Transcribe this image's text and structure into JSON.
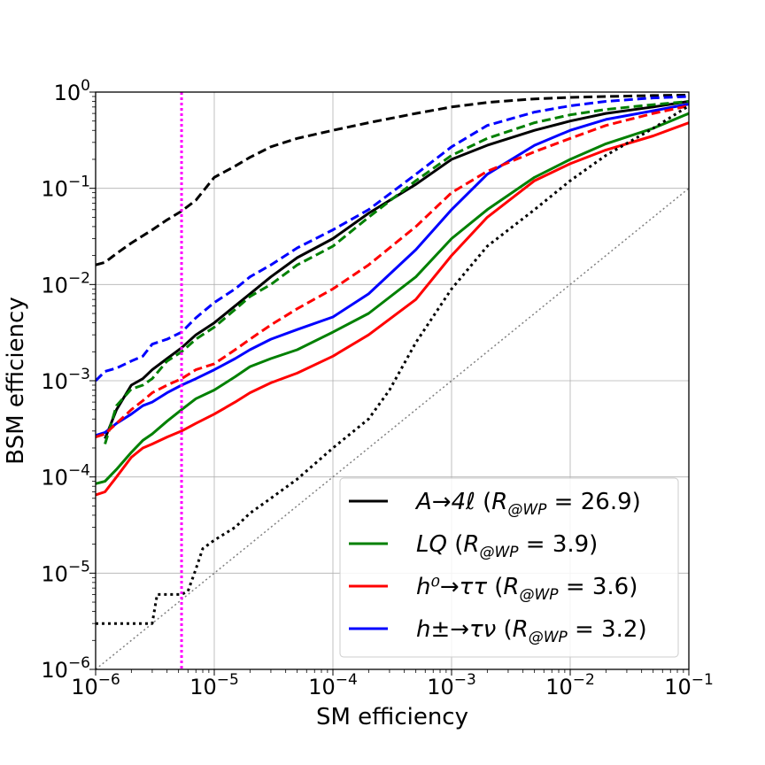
{
  "chart_data": {
    "type": "line",
    "xlabel": "SM efficiency",
    "ylabel": "BSM efficiency",
    "xscale": "log",
    "yscale": "log",
    "xlim": [
      1e-06,
      0.1
    ],
    "ylim": [
      1e-06,
      1
    ],
    "grid": true,
    "legend_position": "lower-right",
    "x_ticks": [
      {
        "base": "10",
        "exp": "−6"
      },
      {
        "base": "10",
        "exp": "−5"
      },
      {
        "base": "10",
        "exp": "−4"
      },
      {
        "base": "10",
        "exp": "−3"
      },
      {
        "base": "10",
        "exp": "−2"
      },
      {
        "base": "10",
        "exp": "−1"
      }
    ],
    "y_ticks": [
      {
        "base": "10",
        "exp": "−6"
      },
      {
        "base": "10",
        "exp": "−5"
      },
      {
        "base": "10",
        "exp": "−4"
      },
      {
        "base": "10",
        "exp": "−3"
      },
      {
        "base": "10",
        "exp": "−2"
      },
      {
        "base": "10",
        "exp": "−1"
      },
      {
        "base": "10",
        "exp": "0"
      }
    ],
    "working_point_x": 5.3e-06,
    "working_point_color": "#ff00ff",
    "random_guess_color": "#808080",
    "colors": {
      "A_4l": "#000000",
      "LQ": "#008000",
      "h0_tautau": "#ff0000",
      "hpm_taunu": "#0000ff"
    },
    "series": [
      {
        "key": "A_4l",
        "style": "solid",
        "legend": {
          "name": "A→4ℓ",
          "ratio_symbol": "R",
          "ratio_sub": "@WP",
          "ratio_value": "26.9"
        },
        "x": [
          1.2e-06,
          1.5e-06,
          2e-06,
          2.5e-06,
          3e-06,
          4e-06,
          5.3e-06,
          7e-06,
          1e-05,
          1.5e-05,
          2e-05,
          3e-05,
          5e-05,
          0.0001,
          0.0002,
          0.0005,
          0.001,
          0.002,
          0.005,
          0.01,
          0.02,
          0.05,
          0.1
        ],
        "y": [
          0.00025,
          0.0005,
          0.0009,
          0.00105,
          0.0013,
          0.0017,
          0.0022,
          0.003,
          0.004,
          0.006,
          0.008,
          0.012,
          0.019,
          0.03,
          0.055,
          0.11,
          0.2,
          0.28,
          0.4,
          0.5,
          0.6,
          0.7,
          0.8
        ]
      },
      {
        "key": "LQ",
        "style": "solid",
        "legend": {
          "name": "LQ",
          "ratio_symbol": "R",
          "ratio_sub": "@WP",
          "ratio_value": "3.9"
        },
        "x": [
          1e-06,
          1.2e-06,
          1.5e-06,
          2e-06,
          2.5e-06,
          3e-06,
          4e-06,
          5.3e-06,
          7e-06,
          1e-05,
          1.5e-05,
          2e-05,
          3e-05,
          5e-05,
          0.0001,
          0.0002,
          0.0005,
          0.001,
          0.002,
          0.005,
          0.01,
          0.02,
          0.05,
          0.1
        ],
        "y": [
          8.5e-05,
          9e-05,
          0.00012,
          0.00018,
          0.00024,
          0.00028,
          0.00038,
          0.0005,
          0.00065,
          0.0008,
          0.0011,
          0.0014,
          0.0017,
          0.0021,
          0.0032,
          0.005,
          0.012,
          0.03,
          0.06,
          0.13,
          0.2,
          0.29,
          0.42,
          0.6
        ]
      },
      {
        "key": "h0_tautau",
        "style": "solid",
        "legend": {
          "name": "h⁰→ττ",
          "ratio_symbol": "R",
          "ratio_sub": "@WP",
          "ratio_value": "3.6"
        },
        "x": [
          1e-06,
          1.2e-06,
          1.5e-06,
          2e-06,
          2.5e-06,
          3e-06,
          4e-06,
          5.3e-06,
          7e-06,
          1e-05,
          1.5e-05,
          2e-05,
          3e-05,
          5e-05,
          0.0001,
          0.0002,
          0.0005,
          0.001,
          0.002,
          0.005,
          0.01,
          0.02,
          0.05,
          0.1
        ],
        "y": [
          6.5e-05,
          7e-05,
          0.0001,
          0.00016,
          0.0002,
          0.00022,
          0.00026,
          0.0003,
          0.00036,
          0.00045,
          0.0006,
          0.00075,
          0.00095,
          0.0012,
          0.0018,
          0.003,
          0.007,
          0.02,
          0.05,
          0.12,
          0.18,
          0.25,
          0.35,
          0.48
        ]
      },
      {
        "key": "hpm_taunu",
        "style": "solid",
        "legend": {
          "name": "h±→τν",
          "ratio_symbol": "R",
          "ratio_sub": "@WP",
          "ratio_value": "3.2"
        },
        "x": [
          1e-06,
          1.2e-06,
          1.5e-06,
          2e-06,
          2.5e-06,
          3e-06,
          4e-06,
          5.3e-06,
          7e-06,
          1e-05,
          1.5e-05,
          2e-05,
          3e-05,
          5e-05,
          0.0001,
          0.0002,
          0.0005,
          0.001,
          0.002,
          0.005,
          0.01,
          0.02,
          0.05,
          0.1
        ],
        "y": [
          0.00027,
          0.00029,
          0.00036,
          0.00045,
          0.00055,
          0.0006,
          0.00075,
          0.0009,
          0.00105,
          0.0013,
          0.0017,
          0.0021,
          0.0027,
          0.0034,
          0.0046,
          0.008,
          0.023,
          0.06,
          0.14,
          0.28,
          0.4,
          0.52,
          0.64,
          0.75
        ]
      },
      {
        "key": "A_4l",
        "style": "dashed",
        "x": [
          1e-06,
          1.2e-06,
          1.5e-06,
          2e-06,
          3e-06,
          4e-06,
          5.3e-06,
          7e-06,
          1e-05,
          1.5e-05,
          2e-05,
          3e-05,
          5e-05,
          0.0001,
          0.0002,
          0.0005,
          0.001,
          0.002,
          0.005,
          0.01,
          0.02,
          0.05,
          0.1
        ],
        "y": [
          0.016,
          0.017,
          0.021,
          0.027,
          0.037,
          0.047,
          0.058,
          0.075,
          0.13,
          0.17,
          0.21,
          0.27,
          0.33,
          0.4,
          0.48,
          0.6,
          0.7,
          0.78,
          0.85,
          0.88,
          0.9,
          0.92,
          0.93
        ]
      },
      {
        "key": "LQ",
        "style": "dashed",
        "x": [
          1.2e-06,
          1.5e-06,
          2e-06,
          2.5e-06,
          3e-06,
          4e-06,
          5.3e-06,
          7e-06,
          1e-05,
          1.5e-05,
          2e-05,
          3e-05,
          5e-05,
          0.0001,
          0.0002,
          0.0005,
          0.001,
          0.002,
          0.005,
          0.01,
          0.02,
          0.05,
          0.1
        ],
        "y": [
          0.00022,
          0.00055,
          0.00082,
          0.0009,
          0.00105,
          0.0016,
          0.002,
          0.0027,
          0.0036,
          0.0055,
          0.0075,
          0.01,
          0.016,
          0.025,
          0.05,
          0.12,
          0.22,
          0.33,
          0.48,
          0.58,
          0.66,
          0.74,
          0.8
        ]
      },
      {
        "key": "h0_tautau",
        "style": "dashed",
        "x": [
          1e-06,
          1.2e-06,
          1.5e-06,
          2e-06,
          2.5e-06,
          3e-06,
          4e-06,
          5.3e-06,
          7e-06,
          1e-05,
          1.5e-05,
          2e-05,
          3e-05,
          5e-05,
          0.0001,
          0.0002,
          0.0005,
          0.001,
          0.002,
          0.005,
          0.01,
          0.02,
          0.05,
          0.1
        ],
        "y": [
          0.00026,
          0.00028,
          0.00036,
          0.0005,
          0.00062,
          0.00075,
          0.0009,
          0.00105,
          0.0013,
          0.0015,
          0.0021,
          0.0027,
          0.0038,
          0.0056,
          0.009,
          0.016,
          0.04,
          0.09,
          0.15,
          0.24,
          0.33,
          0.45,
          0.6,
          0.72
        ]
      },
      {
        "key": "hpm_taunu",
        "style": "dashed",
        "x": [
          1e-06,
          1.2e-06,
          1.5e-06,
          2e-06,
          2.5e-06,
          3e-06,
          4e-06,
          5.3e-06,
          7e-06,
          1e-05,
          1.5e-05,
          2e-05,
          3e-05,
          5e-05,
          0.0001,
          0.0002,
          0.0005,
          0.001,
          0.002,
          0.005,
          0.01,
          0.02,
          0.05,
          0.1
        ],
        "y": [
          0.001,
          0.00125,
          0.00135,
          0.0016,
          0.0018,
          0.0024,
          0.0027,
          0.0032,
          0.0045,
          0.0065,
          0.009,
          0.012,
          0.016,
          0.024,
          0.037,
          0.06,
          0.14,
          0.27,
          0.45,
          0.62,
          0.72,
          0.8,
          0.87,
          0.9
        ]
      },
      {
        "key": "A_4l",
        "style": "dotted",
        "x": [
          1e-06,
          2e-06,
          3e-06,
          3.3e-06,
          5.3e-06,
          6e-06,
          7e-06,
          8e-06,
          1e-05,
          1.5e-05,
          2e-05,
          3e-05,
          5e-05,
          0.0001,
          0.0002,
          0.0003,
          0.0005,
          0.001,
          0.002,
          0.005,
          0.01,
          0.02,
          0.05,
          0.1
        ],
        "y": [
          3e-06,
          3e-06,
          3e-06,
          6e-06,
          6e-06,
          6.5e-06,
          1.1e-05,
          1.8e-05,
          2.2e-05,
          3e-05,
          4.2e-05,
          6e-05,
          9.5e-05,
          0.0002,
          0.0004,
          0.0008,
          0.0025,
          0.009,
          0.025,
          0.06,
          0.12,
          0.22,
          0.42,
          0.72
        ]
      }
    ]
  }
}
